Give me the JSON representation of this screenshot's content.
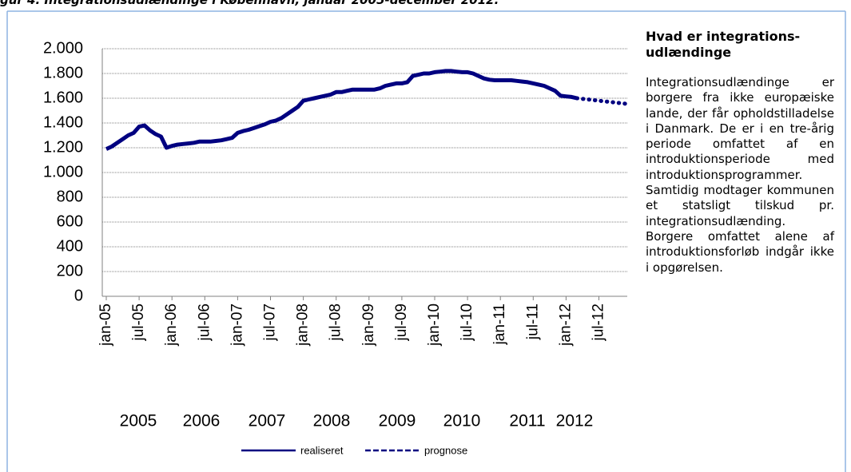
{
  "figure_title": "gur 4. Integrationsudlændinge i København, januar 2005-december 2012.",
  "chart_data": {
    "type": "line",
    "categories": [
      "jan-05",
      null,
      null,
      null,
      null,
      null,
      "jul-05",
      null,
      null,
      null,
      null,
      null,
      "jan-06",
      null,
      null,
      null,
      null,
      null,
      "jul-06",
      null,
      null,
      null,
      null,
      null,
      "jan-07",
      null,
      null,
      null,
      null,
      null,
      "jul-07",
      null,
      null,
      null,
      null,
      null,
      "jan-08",
      null,
      null,
      null,
      null,
      null,
      "jul-08",
      null,
      null,
      null,
      null,
      null,
      "jan-09",
      null,
      null,
      null,
      null,
      null,
      "jul-09",
      null,
      null,
      null,
      null,
      null,
      "jan-10",
      null,
      null,
      null,
      null,
      null,
      "jul-10",
      null,
      null,
      null,
      null,
      null,
      "jan-11",
      null,
      null,
      null,
      null,
      null,
      "jul-11",
      null,
      null,
      null,
      null,
      null,
      "jan-12",
      null,
      null,
      null,
      null,
      null,
      "jul-12",
      null,
      null,
      null,
      null,
      null
    ],
    "year_labels": [
      "2005",
      "2006",
      "2007",
      "2008",
      "2009",
      "2010",
      "2011",
      "2012"
    ],
    "series": [
      {
        "name": "realiseret",
        "color": "#000080",
        "dash": false,
        "values": [
          1190,
          1210,
          1240,
          1270,
          1300,
          1320,
          1370,
          1380,
          1340,
          1310,
          1290,
          1200,
          1215,
          1225,
          1230,
          1235,
          1240,
          1250,
          1250,
          1250,
          1255,
          1260,
          1270,
          1280,
          1320,
          1335,
          1345,
          1360,
          1375,
          1390,
          1410,
          1420,
          1440,
          1470,
          1500,
          1530,
          1580,
          1590,
          1600,
          1610,
          1620,
          1630,
          1650,
          1650,
          1660,
          1670,
          1670,
          1670,
          1670,
          1670,
          1680,
          1700,
          1710,
          1720,
          1720,
          1730,
          1780,
          1790,
          1800,
          1800,
          1810,
          1815,
          1820,
          1820,
          1815,
          1810,
          1810,
          1800,
          1780,
          1760,
          1750,
          1745,
          1745,
          1745,
          1745,
          1740,
          1735,
          1730,
          1720,
          1710,
          1700,
          1680,
          1660,
          1620,
          1615,
          1610,
          1600,
          null,
          null,
          null,
          null,
          null,
          null,
          null,
          null,
          null
        ]
      },
      {
        "name": "prognose",
        "color": "#000080",
        "dash": true,
        "values": [
          null,
          null,
          null,
          null,
          null,
          null,
          null,
          null,
          null,
          null,
          null,
          null,
          null,
          null,
          null,
          null,
          null,
          null,
          null,
          null,
          null,
          null,
          null,
          null,
          null,
          null,
          null,
          null,
          null,
          null,
          null,
          null,
          null,
          null,
          null,
          null,
          null,
          null,
          null,
          null,
          null,
          null,
          null,
          null,
          null,
          null,
          null,
          null,
          null,
          null,
          null,
          null,
          null,
          null,
          null,
          null,
          null,
          null,
          null,
          null,
          null,
          null,
          null,
          null,
          null,
          null,
          null,
          null,
          null,
          null,
          null,
          null,
          null,
          null,
          null,
          null,
          null,
          null,
          null,
          null,
          null,
          null,
          null,
          null,
          null,
          null,
          1600,
          1595,
          1590,
          1585,
          1580,
          1575,
          1570,
          1565,
          1560,
          1555
        ]
      }
    ],
    "ylim": [
      0,
      2000
    ],
    "yticks": [
      0,
      {
        "value": 200,
        "label": "200"
      },
      {
        "value": 400,
        "label": "400"
      },
      {
        "value": 600,
        "label": "600"
      },
      {
        "value": 800,
        "label": "800"
      },
      {
        "value": 1000,
        "label": "1.000"
      },
      {
        "value": 1200,
        "label": "1.200"
      },
      {
        "value": 1400,
        "label": "1.400"
      },
      {
        "value": 1600,
        "label": "1.600"
      },
      {
        "value": 1800,
        "label": "1.800"
      },
      {
        "value": 2000,
        "label": "2.000"
      }
    ],
    "grid": true,
    "legend": "bottom"
  },
  "sidebar": {
    "heading": "Hvad er integrations-udlændinge",
    "body": "Integrationsudlændinge er borgere fra ikke europæiske lande, der får opholdstilladelse i Danmark. De er i en tre-årig periode omfattet af en introduktionsperiode med introduktionsprogrammer. Samtidig modtager kommunen et statsligt tilskud pr. integrationsudlænding. Borgere omfattet alene af introduktionsforløb indgår ikke i opgørelsen."
  }
}
